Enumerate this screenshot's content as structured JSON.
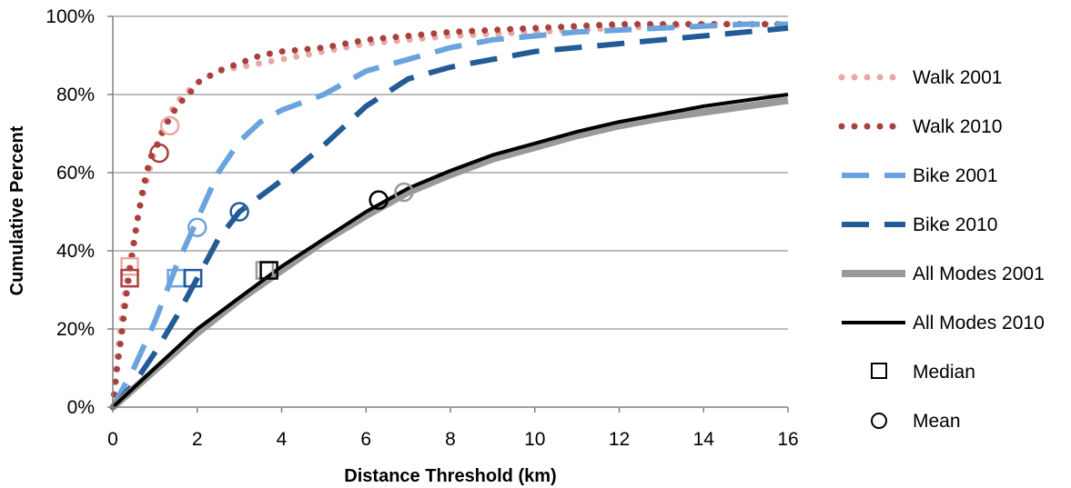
{
  "chart_data": {
    "type": "line",
    "title": "",
    "xlabel": "Distance Threshold (km)",
    "ylabel": "Cumulative Percent",
    "xlim": [
      0,
      16
    ],
    "ylim": [
      0,
      100
    ],
    "x_ticks": [
      "0",
      "2",
      "4",
      "6",
      "8",
      "10",
      "12",
      "14",
      "16"
    ],
    "y_ticks": [
      "0%",
      "20%",
      "40%",
      "60%",
      "80%",
      "100%"
    ],
    "grid": "horizontal",
    "legend_position": "right",
    "series": [
      {
        "name": "Walk 2001",
        "color": "#e8a9a6",
        "style": "dotted",
        "x": [
          0,
          0.1,
          0.2,
          0.3,
          0.4,
          0.5,
          0.6,
          0.7,
          0.8,
          0.9,
          1.0,
          1.2,
          1.4,
          1.6,
          1.8,
          2.0,
          2.5,
          3.0,
          3.5,
          4.0,
          5.0,
          6.0,
          7.0,
          8.0,
          10.0,
          12.0,
          14.0,
          16.0
        ],
        "y": [
          0,
          12,
          22,
          30,
          37,
          43,
          49,
          54,
          58,
          62,
          66,
          72,
          76,
          79,
          81,
          83,
          86,
          87,
          88,
          89,
          91,
          93,
          94,
          95,
          96,
          97,
          98,
          98
        ]
      },
      {
        "name": "Walk 2010",
        "color": "#a8413d",
        "style": "dotted",
        "x": [
          0,
          0.1,
          0.2,
          0.3,
          0.4,
          0.5,
          0.6,
          0.7,
          0.8,
          0.9,
          1.0,
          1.1,
          1.2,
          1.4,
          1.6,
          1.8,
          2.0,
          2.5,
          3.0,
          3.5,
          4.0,
          5.0,
          6.0,
          7.0,
          8.0,
          10.0,
          12.0,
          14.0,
          16.0
        ],
        "y": [
          0,
          10,
          18,
          27,
          35,
          42,
          49,
          55,
          60,
          64,
          66,
          68,
          71,
          75,
          78,
          80,
          83,
          86,
          88,
          90,
          91,
          92,
          94,
          95,
          96,
          97,
          98,
          98,
          98
        ]
      },
      {
        "name": "Bike 2001",
        "color": "#6aa3de",
        "style": "dashed",
        "x": [
          0,
          0.5,
          1.0,
          1.5,
          2.0,
          2.5,
          3.0,
          3.5,
          4.0,
          5.0,
          6.0,
          7.0,
          8.0,
          9.0,
          10.0,
          11.0,
          12.0,
          13.0,
          14.0,
          15.0,
          16.0
        ],
        "y": [
          0,
          10,
          22,
          36,
          48,
          60,
          68,
          73,
          76,
          80,
          86,
          89,
          92,
          94,
          95,
          96,
          96.5,
          97,
          97.5,
          98,
          98
        ]
      },
      {
        "name": "Bike 2010",
        "color": "#225b96",
        "style": "dashed",
        "x": [
          0,
          0.5,
          1.0,
          1.5,
          2.0,
          2.5,
          3.0,
          4.0,
          5.0,
          6.0,
          7.0,
          8.0,
          9.0,
          10.0,
          11.0,
          12.0,
          13.0,
          14.0,
          15.0,
          16.0
        ],
        "y": [
          0,
          6,
          14,
          23,
          33,
          43,
          50,
          58,
          67,
          77,
          84,
          87,
          89,
          91,
          92,
          93,
          94,
          95,
          96,
          97
        ]
      },
      {
        "name": "All Modes 2001",
        "color": "#999999",
        "style": "thick-solid",
        "x": [
          0,
          1,
          2,
          3,
          4,
          5,
          6,
          7,
          8,
          9,
          10,
          11,
          12,
          13,
          14,
          15,
          16
        ],
        "y": [
          0,
          9.5,
          19,
          27.5,
          35,
          42.5,
          49,
          55,
          59.5,
          63.5,
          66.5,
          69.5,
          72,
          74,
          75.5,
          77,
          78.5
        ]
      },
      {
        "name": "All Modes 2010",
        "color": "#000000",
        "style": "solid",
        "x": [
          0,
          1,
          2,
          3,
          4,
          5,
          6,
          7,
          8,
          9,
          10,
          11,
          12,
          13,
          14,
          15,
          16
        ],
        "y": [
          0,
          10,
          20,
          28,
          36,
          43,
          50,
          56,
          60.5,
          64.5,
          67.5,
          70.5,
          73,
          75,
          77,
          78.5,
          80
        ]
      }
    ],
    "markers": [
      {
        "kind": "Median",
        "series": "Walk 2001",
        "x": 0.4,
        "y": 36
      },
      {
        "kind": "Median",
        "series": "Walk 2010",
        "x": 0.4,
        "y": 33
      },
      {
        "kind": "Median",
        "series": "Bike 2001",
        "x": 1.5,
        "y": 33
      },
      {
        "kind": "Median",
        "series": "Bike 2010",
        "x": 1.9,
        "y": 33
      },
      {
        "kind": "Median",
        "series": "All Modes 2001",
        "x": 3.6,
        "y": 35
      },
      {
        "kind": "Median",
        "series": "All Modes 2010",
        "x": 3.7,
        "y": 35
      },
      {
        "kind": "Mean",
        "series": "Walk 2001",
        "x": 1.35,
        "y": 72
      },
      {
        "kind": "Mean",
        "series": "Walk 2010",
        "x": 1.1,
        "y": 65
      },
      {
        "kind": "Mean",
        "series": "Bike 2001",
        "x": 2.0,
        "y": 46
      },
      {
        "kind": "Mean",
        "series": "Bike 2010",
        "x": 3.0,
        "y": 50
      },
      {
        "kind": "Mean",
        "series": "All Modes 2001",
        "x": 6.9,
        "y": 55
      },
      {
        "kind": "Mean",
        "series": "All Modes 2010",
        "x": 6.3,
        "y": 53
      }
    ],
    "legend": [
      {
        "label": "Walk 2001",
        "series": "Walk 2001"
      },
      {
        "label": "Walk 2010",
        "series": "Walk 2010"
      },
      {
        "label": "Bike 2001",
        "series": "Bike 2001"
      },
      {
        "label": "Bike 2010",
        "series": "Bike 2010"
      },
      {
        "label": "All Modes 2001",
        "series": "All Modes 2001"
      },
      {
        "label": "All Modes 2010",
        "series": "All Modes 2010"
      },
      {
        "label": "Median",
        "marker": "square"
      },
      {
        "label": "Mean",
        "marker": "circle"
      }
    ]
  }
}
